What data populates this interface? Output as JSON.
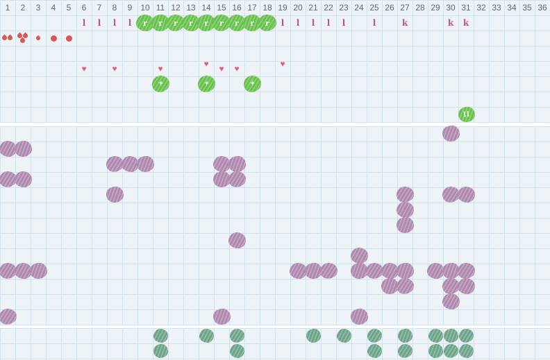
{
  "header": {
    "columns": [
      "1",
      "2",
      "3",
      "4",
      "5",
      "6",
      "7",
      "8",
      "9",
      "10",
      "11",
      "12",
      "13",
      "14",
      "15",
      "16",
      "17",
      "18",
      "19",
      "20",
      "21",
      "22",
      "23",
      "24",
      "25",
      "26",
      "27",
      "28",
      "29",
      "30",
      "31",
      "32",
      "33",
      "34",
      "35",
      "36"
    ]
  },
  "symbols": {
    "row": 2,
    "letter_marks": [
      {
        "col": 6,
        "char": "l"
      },
      {
        "col": 7,
        "char": "l"
      },
      {
        "col": 8,
        "char": "l"
      },
      {
        "col": 9,
        "char": "l"
      },
      {
        "col": 19,
        "char": "l"
      },
      {
        "col": 20,
        "char": "l"
      },
      {
        "col": 21,
        "char": "l"
      },
      {
        "col": 22,
        "char": "l"
      },
      {
        "col": 23,
        "char": "l"
      },
      {
        "col": 25,
        "char": "l"
      },
      {
        "col": 27,
        "char": "k"
      },
      {
        "col": 30,
        "char": "k"
      },
      {
        "col": 31,
        "char": "k"
      }
    ],
    "green_letter_cols": [
      10,
      11,
      12,
      13,
      14,
      15,
      16,
      17,
      18
    ],
    "green_letter_label": "r"
  },
  "flow_marks": {
    "row": 3,
    "items": [
      {
        "col": 1,
        "type": "drops2"
      },
      {
        "col": 2,
        "type": "drops3"
      },
      {
        "col": 3,
        "type": "drop_small"
      },
      {
        "col": 4,
        "type": "dot"
      },
      {
        "col": 5,
        "type": "dot"
      }
    ]
  },
  "hearts": {
    "row": 5,
    "glyph": "♥",
    "items": [
      {
        "col": 6,
        "raised": false
      },
      {
        "col": 8,
        "raised": false
      },
      {
        "col": 11,
        "raised": false
      },
      {
        "col": 14,
        "raised": true
      },
      {
        "col": 15,
        "raised": false
      },
      {
        "col": 16,
        "raised": false
      },
      {
        "col": 19,
        "raised": true
      }
    ]
  },
  "green_plus": {
    "row": 6,
    "cols": [
      11,
      14,
      17
    ],
    "label": "✦"
  },
  "green_pause": {
    "row": 8,
    "col": 31,
    "label": "ll"
  },
  "middle_rows": [
    {
      "row": 1,
      "cols": [
        30
      ]
    },
    {
      "row": 2,
      "cols": [
        1,
        2
      ]
    },
    {
      "row": 3,
      "cols": [
        8,
        9,
        10,
        15,
        16
      ]
    },
    {
      "row": 4,
      "cols": [
        1,
        2,
        15,
        16
      ]
    },
    {
      "row": 5,
      "cols": [
        8,
        27,
        30,
        31
      ]
    },
    {
      "row": 6,
      "cols": [
        27
      ]
    },
    {
      "row": 7,
      "cols": [
        27
      ]
    },
    {
      "row": 8,
      "cols": [
        16
      ]
    },
    {
      "row": 9,
      "cols": [
        24
      ]
    },
    {
      "row": 10,
      "cols": [
        1,
        2,
        3,
        20,
        21,
        22,
        24,
        25,
        26,
        27,
        29,
        30,
        31
      ]
    },
    {
      "row": 11,
      "cols": [
        26,
        27,
        30,
        31
      ]
    },
    {
      "row": 12,
      "cols": [
        30
      ]
    },
    {
      "row": 13,
      "cols": [
        1,
        15,
        24
      ]
    }
  ],
  "bottom_rows": [
    {
      "row": 1,
      "cols": [
        11,
        14,
        16,
        21,
        23,
        25,
        27,
        29,
        30,
        31
      ]
    },
    {
      "row": 2,
      "cols": [
        11,
        16,
        25,
        27,
        29,
        30,
        31
      ]
    }
  ],
  "colors": {
    "background": "#eef3f7",
    "grid_line": "#d3e2ec",
    "number_text": "#5d6870",
    "letter_pink": "#b2598b",
    "heart_pink": "#e05e80",
    "drop_red": "#da5755",
    "green": "#69c24d",
    "purple": "#b089af",
    "sage": "#6ea58a"
  }
}
